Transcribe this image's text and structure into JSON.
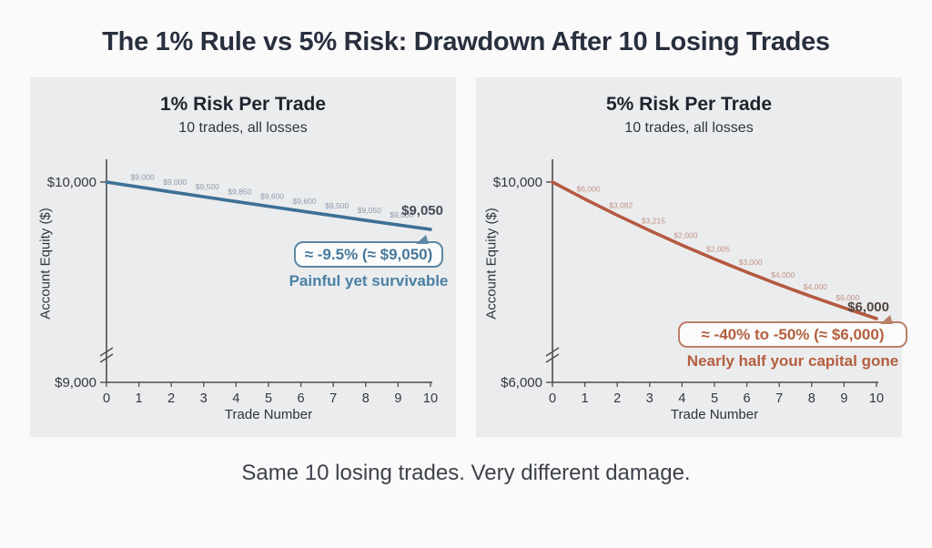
{
  "page": {
    "title": "The 1% Rule vs 5% Risk: Drawdown After 10 Losing Trades",
    "caption": "Same 10 losing trades. Very different damage."
  },
  "chart_data": [
    {
      "type": "line",
      "title": "1% Risk Per Trade",
      "subtitle": "10 trades, all losses",
      "xlabel": "Trade Number",
      "ylabel": "Account Equity ($)",
      "x_ticks": [
        "0",
        "1",
        "2",
        "3",
        "4",
        "5",
        "6",
        "7",
        "8",
        "9",
        "10"
      ],
      "x": [
        0,
        1,
        2,
        3,
        4,
        5,
        6,
        7,
        8,
        9,
        10
      ],
      "values": [
        10000,
        9900,
        9801,
        9703,
        9606,
        9510,
        9415,
        9321,
        9227,
        9135,
        9044
      ],
      "point_labels": [
        "$9,000",
        "$9,000",
        "$9,500",
        "$9,850",
        "$9,600",
        "$9,600",
        "$9,500",
        "$9,050",
        "$9,000"
      ],
      "end_label": "$9,050",
      "y_axis": {
        "top_label": "$10,000",
        "bottom_label": "$9,000",
        "broken": true,
        "ylim": [
          9000,
          10000
        ]
      },
      "callout": "≈ -9.5% (≈ $9,050)",
      "note": "Painful yet survivable",
      "line_color": "#3d7095",
      "point_label_color": "#8b9aab",
      "end_label_color": "#454b57",
      "grid": false,
      "legend": "none"
    },
    {
      "type": "line",
      "title": "5% Risk Per Trade",
      "subtitle": "10 trades, all losses",
      "xlabel": "Trade Number",
      "ylabel": "Account Equity ($)",
      "x_ticks": [
        "0",
        "1",
        "2",
        "3",
        "4",
        "5",
        "6",
        "7",
        "8",
        "9",
        "10"
      ],
      "x": [
        0,
        1,
        2,
        3,
        4,
        5,
        6,
        7,
        8,
        9,
        10
      ],
      "values": [
        10000,
        9500,
        9025,
        8574,
        8145,
        7738,
        7351,
        6983,
        6634,
        6302,
        5987
      ],
      "point_labels": [
        "$6,000",
        "$3,082",
        "$3,215",
        "$2,000",
        "$2,005",
        "$3,000",
        "$4,000",
        "$4,000",
        "$6,000"
      ],
      "end_label": "$6,000",
      "y_axis": {
        "top_label": "$10,000",
        "bottom_label": "$6,000",
        "broken": true,
        "ylim": [
          6000,
          10000
        ]
      },
      "callout": "≈ -40% to -50% (≈ $6,000)",
      "note": "Nearly half your capital gone",
      "line_color": "#b45a41",
      "point_label_color": "#c49383",
      "end_label_color": "#52443d",
      "grid": false,
      "legend": "none"
    }
  ]
}
